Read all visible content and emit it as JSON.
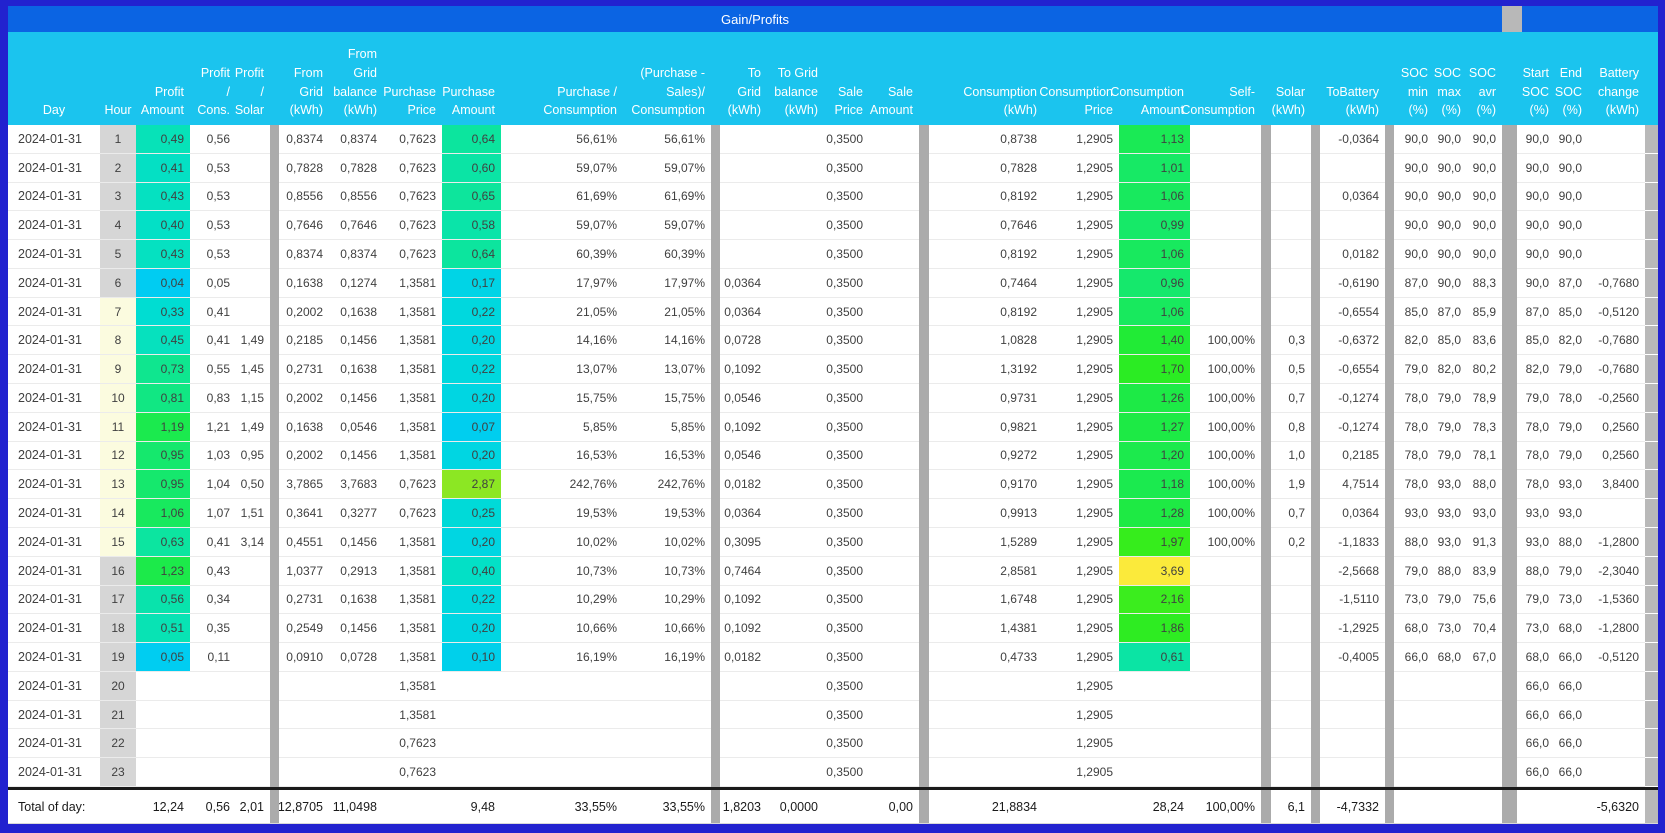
{
  "title": "Gain/Profits",
  "colors": {
    "frame_border": "#2222CF",
    "title_bar": "#0B64E3",
    "header_bg": "#1BC4EE",
    "divider_gray": "#ABABAB",
    "hour_gray": "#D6D6D6",
    "hour_cream": "#FBFBDF",
    "scrollbar_gray": "#B9B9B9",
    "total_border": "#1A1A1A"
  },
  "columns": [
    {
      "key": "day",
      "label": "Day"
    },
    {
      "key": "hour",
      "label": "Hour"
    },
    {
      "key": "pa",
      "label": "Profit\nAmount"
    },
    {
      "key": "pcn",
      "label": "Profit\n/\nCons."
    },
    {
      "key": "psl",
      "label": "Profit\n/\nSolar"
    },
    {
      "key": "d1",
      "type": "divider"
    },
    {
      "key": "fg",
      "label": "From\nGrid\n(kWh)"
    },
    {
      "key": "fgb",
      "label": "From\nGrid\nbalance\n(kWh)"
    },
    {
      "key": "pp",
      "label": "Purchase\nPrice"
    },
    {
      "key": "pam",
      "label": "Purchase\nAmount"
    },
    {
      "key": "pcp",
      "label": "Purchase /\nConsumption"
    },
    {
      "key": "psc",
      "label": "(Purchase -\nSales)/\nConsumption"
    },
    {
      "key": "d2",
      "type": "divider"
    },
    {
      "key": "tg",
      "label": "To\nGrid\n(kWh)"
    },
    {
      "key": "tgb",
      "label": "To Grid\nbalance\n(kWh)"
    },
    {
      "key": "sp",
      "label": "Sale\nPrice"
    },
    {
      "key": "sa",
      "label": "Sale\nAmount"
    },
    {
      "key": "d3",
      "type": "divider"
    },
    {
      "key": "co",
      "label": "Consumption\n(kWh)"
    },
    {
      "key": "cp",
      "label": "Consumption\nPrice"
    },
    {
      "key": "ca",
      "label": "Consumption\nAmount"
    },
    {
      "key": "sc",
      "label": "Self-\nConsumption"
    },
    {
      "key": "d4",
      "type": "divider"
    },
    {
      "key": "so",
      "label": "Solar\n(kWh)"
    },
    {
      "key": "d5",
      "type": "divider"
    },
    {
      "key": "tb",
      "label": "ToBattery\n(kWh)"
    },
    {
      "key": "d6",
      "type": "divider"
    },
    {
      "key": "smin",
      "label": "SOC\nmin\n(%)"
    },
    {
      "key": "smax",
      "label": "SOC\nmax\n(%)"
    },
    {
      "key": "savr",
      "label": "SOC\navr\n(%)"
    },
    {
      "key": "d7",
      "type": "divider"
    },
    {
      "key": "sst",
      "label": "Start\nSOC\n(%)"
    },
    {
      "key": "sen",
      "label": "End\nSOC\n(%)"
    },
    {
      "key": "bch",
      "label": "Battery\nchange\n(kWh)"
    },
    {
      "key": "sb",
      "type": "scrollbar"
    }
  ],
  "rows": [
    {
      "day": "2024-01-31",
      "hour": "1",
      "hz": "g",
      "pa": "0,49",
      "pac": "#07E2B8",
      "pcn": "0,56",
      "psl": "",
      "fg": "0,8374",
      "fgb": "0,8374",
      "pp": "0,7623",
      "pam": "0,64",
      "pamc": "#0CE59E",
      "pcp": "56,61%",
      "psc": "56,61%",
      "tg": "",
      "tgb": "",
      "sp": "0,3500",
      "sa": "",
      "co": "0,8738",
      "cp": "1,2905",
      "ca": "1,13",
      "cac": "#1AEA55",
      "sc": "",
      "so": "",
      "tb": "-0,0364",
      "smin": "90,0",
      "smax": "90,0",
      "savr": "90,0",
      "sst": "90,0",
      "sen": "90,0",
      "bch": ""
    },
    {
      "day": "2024-01-31",
      "hour": "2",
      "hz": "g",
      "pa": "0,41",
      "pac": "#04E0C4",
      "pcn": "0,53",
      "psl": "",
      "fg": "0,7828",
      "fgb": "0,7828",
      "pp": "0,7623",
      "pam": "0,60",
      "pamc": "#0BE4A5",
      "pcp": "59,07%",
      "psc": "59,07%",
      "tg": "",
      "tgb": "",
      "sp": "0,3500",
      "sa": "",
      "co": "0,7828",
      "cp": "1,2905",
      "ca": "1,01",
      "cac": "#17E965",
      "sc": "",
      "so": "",
      "tb": "",
      "smin": "90,0",
      "smax": "90,0",
      "savr": "90,0",
      "sst": "90,0",
      "sen": "90,0",
      "bch": ""
    },
    {
      "day": "2024-01-31",
      "hour": "3",
      "hz": "g",
      "pa": "0,43",
      "pac": "#05E1C1",
      "pcn": "0,53",
      "psl": "",
      "fg": "0,8556",
      "fgb": "0,8556",
      "pp": "0,7623",
      "pam": "0,65",
      "pamc": "#0DE59C",
      "pcp": "61,69%",
      "psc": "61,69%",
      "tg": "",
      "tgb": "",
      "sp": "0,3500",
      "sa": "",
      "co": "0,8192",
      "cp": "1,2905",
      "ca": "1,06",
      "cac": "#18E95E",
      "sc": "",
      "so": "",
      "tb": "0,0364",
      "smin": "90,0",
      "smax": "90,0",
      "savr": "90,0",
      "sst": "90,0",
      "sen": "90,0",
      "bch": ""
    },
    {
      "day": "2024-01-31",
      "hour": "4",
      "hz": "g",
      "pa": "0,40",
      "pac": "#03E0C6",
      "pcn": "0,53",
      "psl": "",
      "fg": "0,7646",
      "fgb": "0,7646",
      "pp": "0,7623",
      "pam": "0,58",
      "pamc": "#0AE4A9",
      "pcp": "59,07%",
      "psc": "59,07%",
      "tg": "",
      "tgb": "",
      "sp": "0,3500",
      "sa": "",
      "co": "0,7646",
      "cp": "1,2905",
      "ca": "0,99",
      "cac": "#16E968",
      "sc": "",
      "so": "",
      "tb": "",
      "smin": "90,0",
      "smax": "90,0",
      "savr": "90,0",
      "sst": "90,0",
      "sen": "90,0",
      "bch": ""
    },
    {
      "day": "2024-01-31",
      "hour": "5",
      "hz": "g",
      "pa": "0,43",
      "pac": "#05E1C1",
      "pcn": "0,53",
      "psl": "",
      "fg": "0,8374",
      "fgb": "0,8374",
      "pp": "0,7623",
      "pam": "0,64",
      "pamc": "#0CE59E",
      "pcp": "60,39%",
      "psc": "60,39%",
      "tg": "",
      "tgb": "",
      "sp": "0,3500",
      "sa": "",
      "co": "0,8192",
      "cp": "1,2905",
      "ca": "1,06",
      "cac": "#18E95E",
      "sc": "",
      "so": "",
      "tb": "0,0182",
      "smin": "90,0",
      "smax": "90,0",
      "savr": "90,0",
      "sst": "90,0",
      "sen": "90,0",
      "bch": ""
    },
    {
      "day": "2024-01-31",
      "hour": "6",
      "hz": "g",
      "pa": "0,04",
      "pac": "#00CCF2",
      "pcn": "0,05",
      "psl": "",
      "fg": "0,1638",
      "fgb": "0,1274",
      "pp": "1,3581",
      "pam": "0,17",
      "pamc": "#00D4E6",
      "pcp": "17,97%",
      "psc": "17,97%",
      "tg": "0,0364",
      "tgb": "",
      "sp": "0,3500",
      "sa": "",
      "co": "0,7464",
      "cp": "1,2905",
      "ca": "0,96",
      "cac": "#15E86C",
      "sc": "",
      "so": "",
      "tb": "-0,6190",
      "smin": "87,0",
      "smax": "90,0",
      "savr": "88,3",
      "sst": "90,0",
      "sen": "87,0",
      "bch": "-0,7680"
    },
    {
      "day": "2024-01-31",
      "hour": "7",
      "hz": "c",
      "pa": "0,33",
      "pac": "#00DDD2",
      "pcn": "0,41",
      "psl": "",
      "fg": "0,2002",
      "fgb": "0,1638",
      "pp": "1,3581",
      "pam": "0,22",
      "pamc": "#00D8DE",
      "pcp": "21,05%",
      "psc": "21,05%",
      "tg": "0,0364",
      "tgb": "",
      "sp": "0,3500",
      "sa": "",
      "co": "0,8192",
      "cp": "1,2905",
      "ca": "1,06",
      "cac": "#18E95E",
      "sc": "",
      "so": "",
      "tb": "-0,6554",
      "smin": "85,0",
      "smax": "87,0",
      "savr": "85,9",
      "sst": "87,0",
      "sen": "85,0",
      "bch": "-0,5120"
    },
    {
      "day": "2024-01-31",
      "hour": "8",
      "hz": "c",
      "pa": "0,45",
      "pac": "#06E1BE",
      "pcn": "0,41",
      "psl": "1,49",
      "fg": "0,2185",
      "fgb": "0,1456",
      "pp": "1,3581",
      "pam": "0,20",
      "pamc": "#00D6E2",
      "pcp": "14,16%",
      "psc": "14,16%",
      "tg": "0,0728",
      "tgb": "",
      "sp": "0,3500",
      "sa": "",
      "co": "1,0828",
      "cp": "1,2905",
      "ca": "1,40",
      "cac": "#21EB36",
      "sc": "100,00%",
      "so": "0,3",
      "tb": "-0,6372",
      "smin": "82,0",
      "smax": "85,0",
      "savr": "83,6",
      "sst": "85,0",
      "sen": "82,0",
      "bch": "-0,7680"
    },
    {
      "day": "2024-01-31",
      "hour": "9",
      "hz": "c",
      "pa": "0,73",
      "pac": "#0FE68F",
      "pcn": "0,55",
      "psl": "1,45",
      "fg": "0,2731",
      "fgb": "0,1638",
      "pp": "1,3581",
      "pam": "0,22",
      "pamc": "#00D8DE",
      "pcp": "13,07%",
      "psc": "13,07%",
      "tg": "0,1092",
      "tgb": "",
      "sp": "0,3500",
      "sa": "",
      "co": "1,3192",
      "cp": "1,2905",
      "ca": "1,70",
      "cac": "#2BEC23",
      "sc": "100,00%",
      "so": "0,5",
      "tb": "-0,6554",
      "smin": "79,0",
      "smax": "82,0",
      "savr": "80,2",
      "sst": "82,0",
      "sen": "79,0",
      "bch": "-0,7680"
    },
    {
      "day": "2024-01-31",
      "hour": "10",
      "hz": "c",
      "pa": "0,81",
      "pac": "#11E783",
      "pcn": "0,83",
      "psl": "1,15",
      "fg": "0,2002",
      "fgb": "0,1456",
      "pp": "1,3581",
      "pam": "0,20",
      "pamc": "#00D6E2",
      "pcp": "15,75%",
      "psc": "15,75%",
      "tg": "0,0546",
      "tgb": "",
      "sp": "0,3500",
      "sa": "",
      "co": "0,9731",
      "cp": "1,2905",
      "ca": "1,26",
      "cac": "#1DEA46",
      "sc": "100,00%",
      "so": "0,7",
      "tb": "-0,1274",
      "smin": "78,0",
      "smax": "79,0",
      "savr": "78,9",
      "sst": "79,0",
      "sen": "78,0",
      "bch": "-0,2560"
    },
    {
      "day": "2024-01-31",
      "hour": "11",
      "hz": "c",
      "pa": "1,19",
      "pac": "#1BEA4E",
      "pcn": "1,21",
      "psl": "1,49",
      "fg": "0,1638",
      "fgb": "0,0546",
      "pp": "1,3581",
      "pam": "0,07",
      "pamc": "#00CEEF",
      "pcp": "5,85%",
      "psc": "5,85%",
      "tg": "0,1092",
      "tgb": "",
      "sp": "0,3500",
      "sa": "",
      "co": "0,9821",
      "cp": "1,2905",
      "ca": "1,27",
      "cac": "#1DEA45",
      "sc": "100,00%",
      "so": "0,8",
      "tb": "-0,1274",
      "smin": "78,0",
      "smax": "79,0",
      "savr": "78,3",
      "sst": "78,0",
      "sen": "79,0",
      "bch": "0,2560"
    },
    {
      "day": "2024-01-31",
      "hour": "12",
      "hz": "c",
      "pa": "0,95",
      "pac": "#15E86D",
      "pcn": "1,03",
      "psl": "0,95",
      "fg": "0,2002",
      "fgb": "0,1456",
      "pp": "1,3581",
      "pam": "0,20",
      "pamc": "#00D6E2",
      "pcp": "16,53%",
      "psc": "16,53%",
      "tg": "0,0546",
      "tgb": "",
      "sp": "0,3500",
      "sa": "",
      "co": "0,9272",
      "cp": "1,2905",
      "ca": "1,20",
      "cac": "#1CEA4D",
      "sc": "100,00%",
      "so": "1,0",
      "tb": "0,2185",
      "smin": "78,0",
      "smax": "79,0",
      "savr": "78,1",
      "sst": "78,0",
      "sen": "79,0",
      "bch": "0,2560"
    },
    {
      "day": "2024-01-31",
      "hour": "13",
      "hz": "c",
      "pa": "0,95",
      "pac": "#15E86D",
      "pcn": "1,04",
      "psl": "0,50",
      "fg": "3,7865",
      "fgb": "3,7683",
      "pp": "0,7623",
      "pam": "2,87",
      "pamc": "#8CE723",
      "pcp": "242,76%",
      "psc": "242,76%",
      "tg": "0,0182",
      "tgb": "",
      "sp": "0,3500",
      "sa": "",
      "co": "0,9170",
      "cp": "1,2905",
      "ca": "1,18",
      "cac": "#1BEA4F",
      "sc": "100,00%",
      "so": "1,9",
      "tb": "4,7514",
      "smin": "78,0",
      "smax": "93,0",
      "savr": "88,0",
      "sst": "78,0",
      "sen": "93,0",
      "bch": "3,8400"
    },
    {
      "day": "2024-01-31",
      "hour": "14",
      "hz": "c",
      "pa": "1,06",
      "pac": "#18E95E",
      "pcn": "1,07",
      "psl": "1,51",
      "fg": "0,3641",
      "fgb": "0,3277",
      "pp": "0,7623",
      "pam": "0,25",
      "pamc": "#00DAD8",
      "pcp": "19,53%",
      "psc": "19,53%",
      "tg": "0,0364",
      "tgb": "",
      "sp": "0,3500",
      "sa": "",
      "co": "0,9913",
      "cp": "1,2905",
      "ca": "1,28",
      "cac": "#1EEA44",
      "sc": "100,00%",
      "so": "0,7",
      "tb": "0,0364",
      "smin": "93,0",
      "smax": "93,0",
      "savr": "93,0",
      "sst": "93,0",
      "sen": "93,0",
      "bch": ""
    },
    {
      "day": "2024-01-31",
      "hour": "15",
      "hz": "c",
      "pa": "0,63",
      "pac": "#0CE5A0",
      "pcn": "0,41",
      "psl": "3,14",
      "fg": "0,4551",
      "fgb": "0,1456",
      "pp": "1,3581",
      "pam": "0,20",
      "pamc": "#00D6E2",
      "pcp": "10,02%",
      "psc": "10,02%",
      "tg": "0,3095",
      "tgb": "",
      "sp": "0,3500",
      "sa": "",
      "co": "1,5289",
      "cp": "1,2905",
      "ca": "1,97",
      "cac": "#36ED1C",
      "sc": "100,00%",
      "so": "0,2",
      "tb": "-1,1833",
      "smin": "88,0",
      "smax": "93,0",
      "savr": "91,3",
      "sst": "93,0",
      "sen": "88,0",
      "bch": "-1,2800"
    },
    {
      "day": "2024-01-31",
      "hour": "16",
      "hz": "g",
      "pa": "1,23",
      "pac": "#1CEA4A",
      "pcn": "0,43",
      "psl": "",
      "fg": "1,0377",
      "fgb": "0,2913",
      "pp": "1,3581",
      "pam": "0,40",
      "pamc": "#03E0C6",
      "pcp": "10,73%",
      "psc": "10,73%",
      "tg": "0,7464",
      "tgb": "",
      "sp": "0,3500",
      "sa": "",
      "co": "2,8581",
      "cp": "1,2905",
      "ca": "3,69",
      "cac": "#FBEA3B",
      "sc": "",
      "so": "",
      "tb": "-2,5668",
      "smin": "79,0",
      "smax": "88,0",
      "savr": "83,9",
      "sst": "88,0",
      "sen": "79,0",
      "bch": "-2,3040"
    },
    {
      "day": "2024-01-31",
      "hour": "17",
      "hz": "g",
      "pa": "0,56",
      "pac": "#09E3AC",
      "pcn": "0,34",
      "psl": "",
      "fg": "0,2731",
      "fgb": "0,1638",
      "pp": "1,3581",
      "pam": "0,22",
      "pamc": "#00D8DE",
      "pcp": "10,29%",
      "psc": "10,29%",
      "tg": "0,1092",
      "tgb": "",
      "sp": "0,3500",
      "sa": "",
      "co": "1,6748",
      "cp": "1,2905",
      "ca": "2,16",
      "cac": "#3BED1E",
      "sc": "",
      "so": "",
      "tb": "-1,5110",
      "smin": "73,0",
      "smax": "79,0",
      "savr": "75,6",
      "sst": "79,0",
      "sen": "73,0",
      "bch": "-1,5360"
    },
    {
      "day": "2024-01-31",
      "hour": "18",
      "hz": "g",
      "pa": "0,51",
      "pac": "#08E3B4",
      "pcn": "0,35",
      "psl": "",
      "fg": "0,2549",
      "fgb": "0,1456",
      "pp": "1,3581",
      "pam": "0,20",
      "pamc": "#00D6E2",
      "pcp": "10,66%",
      "psc": "10,66%",
      "tg": "0,1092",
      "tgb": "",
      "sp": "0,3500",
      "sa": "",
      "co": "1,4381",
      "cp": "1,2905",
      "ca": "1,86",
      "cac": "#2EEC22",
      "sc": "",
      "so": "",
      "tb": "-1,2925",
      "smin": "68,0",
      "smax": "73,0",
      "savr": "70,4",
      "sst": "73,0",
      "sen": "68,0",
      "bch": "-1,2800"
    },
    {
      "day": "2024-01-31",
      "hour": "19",
      "hz": "g",
      "pa": "0,05",
      "pac": "#00CDF1",
      "pcn": "0,11",
      "psl": "",
      "fg": "0,0910",
      "fgb": "0,0728",
      "pp": "1,3581",
      "pam": "0,10",
      "pamc": "#00D0EB",
      "pcp": "16,19%",
      "psc": "16,19%",
      "tg": "0,0182",
      "tgb": "",
      "sp": "0,3500",
      "sa": "",
      "co": "0,4733",
      "cp": "1,2905",
      "ca": "0,61",
      "cac": "#0BE4A4",
      "sc": "",
      "so": "",
      "tb": "-0,4005",
      "smin": "66,0",
      "smax": "68,0",
      "savr": "67,0",
      "sst": "68,0",
      "sen": "66,0",
      "bch": "-0,5120"
    },
    {
      "day": "2024-01-31",
      "hour": "20",
      "hz": "g",
      "pa": "",
      "pcn": "",
      "psl": "",
      "fg": "",
      "fgb": "",
      "pp": "1,3581",
      "pam": "",
      "pcp": "",
      "psc": "",
      "tg": "",
      "tgb": "",
      "sp": "0,3500",
      "sa": "",
      "co": "",
      "cp": "1,2905",
      "ca": "",
      "sc": "",
      "so": "",
      "tb": "",
      "smin": "",
      "smax": "",
      "savr": "",
      "sst": "66,0",
      "sen": "66,0",
      "bch": ""
    },
    {
      "day": "2024-01-31",
      "hour": "21",
      "hz": "g",
      "pa": "",
      "pcn": "",
      "psl": "",
      "fg": "",
      "fgb": "",
      "pp": "1,3581",
      "pam": "",
      "pcp": "",
      "psc": "",
      "tg": "",
      "tgb": "",
      "sp": "0,3500",
      "sa": "",
      "co": "",
      "cp": "1,2905",
      "ca": "",
      "sc": "",
      "so": "",
      "tb": "",
      "smin": "",
      "smax": "",
      "savr": "",
      "sst": "66,0",
      "sen": "66,0",
      "bch": ""
    },
    {
      "day": "2024-01-31",
      "hour": "22",
      "hz": "g",
      "pa": "",
      "pcn": "",
      "psl": "",
      "fg": "",
      "fgb": "",
      "pp": "0,7623",
      "pam": "",
      "pcp": "",
      "psc": "",
      "tg": "",
      "tgb": "",
      "sp": "0,3500",
      "sa": "",
      "co": "",
      "cp": "1,2905",
      "ca": "",
      "sc": "",
      "so": "",
      "tb": "",
      "smin": "",
      "smax": "",
      "savr": "",
      "sst": "66,0",
      "sen": "66,0",
      "bch": ""
    },
    {
      "day": "2024-01-31",
      "hour": "23",
      "hz": "g",
      "pa": "",
      "pcn": "",
      "psl": "",
      "fg": "",
      "fgb": "",
      "pp": "0,7623",
      "pam": "",
      "pcp": "",
      "psc": "",
      "tg": "",
      "tgb": "",
      "sp": "0,3500",
      "sa": "",
      "co": "",
      "cp": "1,2905",
      "ca": "",
      "sc": "",
      "so": "",
      "tb": "",
      "smin": "",
      "smax": "",
      "savr": "",
      "sst": "66,0",
      "sen": "66,0",
      "bch": ""
    }
  ],
  "total": {
    "day": "Total of day:",
    "pa": "12,24",
    "pcn": "0,56",
    "psl": "2,01",
    "fg": "12,8705",
    "fgb": "11,0498",
    "pp": "",
    "pam": "9,48",
    "pcp": "33,55%",
    "psc": "33,55%",
    "tg": "1,8203",
    "tgb": "0,0000",
    "sp": "",
    "sa": "0,00",
    "co": "21,8834",
    "cp": "",
    "ca": "28,24",
    "sc": "100,00%",
    "so": "6,1",
    "tb": "-4,7332",
    "smin": "",
    "smax": "",
    "savr": "",
    "sst": "",
    "sen": "",
    "bch": "-5,6320"
  }
}
